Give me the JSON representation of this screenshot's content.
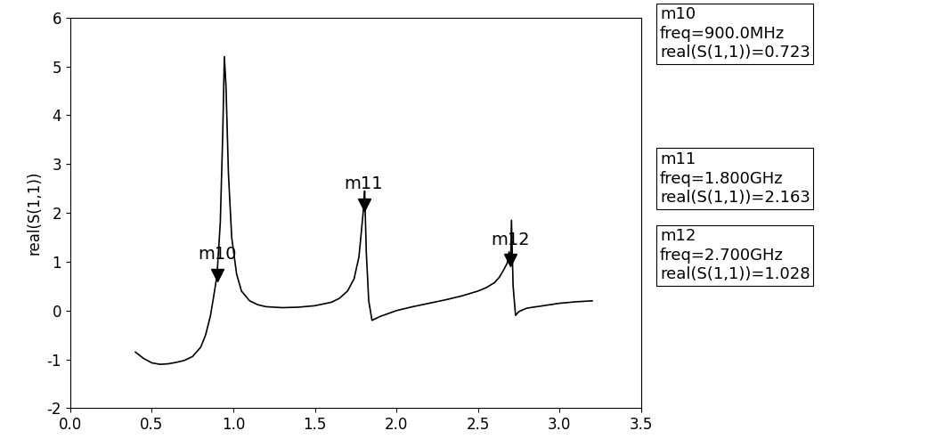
{
  "chart_data": {
    "type": "line",
    "y_label": "real(S(1,1))",
    "x": [
      0.4,
      0.45,
      0.5,
      0.55,
      0.6,
      0.65,
      0.7,
      0.75,
      0.8,
      0.83,
      0.86,
      0.88,
      0.9,
      0.92,
      0.935,
      0.945,
      0.955,
      0.97,
      0.99,
      1.02,
      1.05,
      1.1,
      1.15,
      1.2,
      1.3,
      1.4,
      1.5,
      1.6,
      1.65,
      1.7,
      1.74,
      1.77,
      1.79,
      1.8,
      1.805,
      1.815,
      1.83,
      1.85,
      1.9,
      2.0,
      2.1,
      2.2,
      2.3,
      2.4,
      2.5,
      2.55,
      2.6,
      2.63,
      2.66,
      2.68,
      2.69,
      2.7,
      2.705,
      2.715,
      2.73,
      2.75,
      2.8,
      2.9,
      3.0,
      3.1,
      3.2
    ],
    "values": [
      -0.85,
      -0.98,
      -1.07,
      -1.1,
      -1.09,
      -1.06,
      -1.02,
      -0.94,
      -0.75,
      -0.5,
      -0.1,
      0.3,
      0.723,
      1.8,
      3.6,
      5.2,
      4.6,
      2.8,
      1.5,
      0.75,
      0.4,
      0.2,
      0.12,
      0.08,
      0.06,
      0.07,
      0.1,
      0.17,
      0.25,
      0.4,
      0.65,
      1.1,
      1.8,
      2.163,
      2.45,
      1.2,
      0.2,
      -0.2,
      -0.12,
      0.0,
      0.08,
      0.15,
      0.22,
      0.3,
      0.4,
      0.47,
      0.57,
      0.68,
      0.85,
      0.98,
      1.2,
      1.028,
      1.85,
      0.5,
      -0.1,
      -0.02,
      0.05,
      0.1,
      0.15,
      0.18,
      0.2
    ],
    "color": "#000000",
    "xlim": [
      0.0,
      3.5
    ],
    "xticks": [
      0.0,
      0.5,
      1.0,
      1.5,
      2.0,
      2.5,
      3.0,
      3.5
    ],
    "ylim": [
      -2,
      6
    ],
    "yticks": [
      -2,
      -1,
      0,
      1,
      2,
      3,
      4,
      5,
      6
    ],
    "grid": false,
    "markers": [
      {
        "name": "m10",
        "x": 0.9,
        "y": 0.723,
        "freq_label": "freq=900.0MHz",
        "value_label": "real(S(1,1))=0.723"
      },
      {
        "name": "m11",
        "x": 1.8,
        "y": 2.163,
        "freq_label": "freq=1.800GHz",
        "value_label": "real(S(1,1))=2.163"
      },
      {
        "name": "m12",
        "x": 2.7,
        "y": 1.028,
        "freq_label": "freq=2.700GHz",
        "value_label": "real(S(1,1))=1.028"
      }
    ]
  }
}
